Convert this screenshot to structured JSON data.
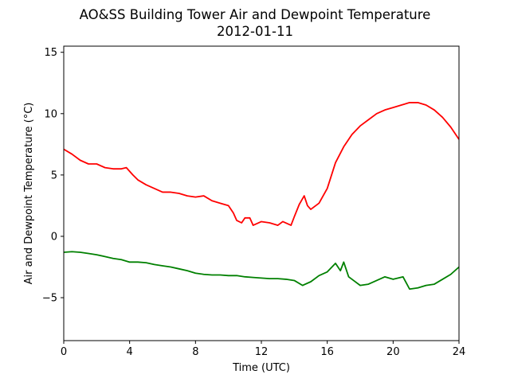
{
  "chart_data": {
    "type": "line",
    "title": "AO&SS Building Tower Air and Dewpoint Temperature",
    "subtitle": "2012-01-11",
    "xlabel": "Time (UTC)",
    "ylabel": "Air and Dewpoint Temperature (°C)",
    "xlim": [
      0,
      24
    ],
    "ylim": [
      -8.5,
      15.5
    ],
    "x_ticks": [
      0,
      4,
      8,
      12,
      16,
      20,
      24
    ],
    "y_ticks": [
      -5,
      0,
      5,
      10,
      15
    ],
    "grid": false,
    "series": [
      {
        "color": "#ff0000",
        "points": [
          [
            0,
            7.1
          ],
          [
            0.5,
            6.7
          ],
          [
            1,
            6.2
          ],
          [
            1.5,
            5.9
          ],
          [
            2,
            5.9
          ],
          [
            2.5,
            5.6
          ],
          [
            3,
            5.5
          ],
          [
            3.5,
            5.5
          ],
          [
            3.8,
            5.6
          ],
          [
            4.2,
            5.0
          ],
          [
            4.5,
            4.6
          ],
          [
            5,
            4.2
          ],
          [
            5.5,
            3.9
          ],
          [
            6,
            3.6
          ],
          [
            6.5,
            3.6
          ],
          [
            7,
            3.5
          ],
          [
            7.5,
            3.3
          ],
          [
            8,
            3.2
          ],
          [
            8.5,
            3.3
          ],
          [
            9,
            2.9
          ],
          [
            9.5,
            2.7
          ],
          [
            10,
            2.5
          ],
          [
            10.3,
            1.9
          ],
          [
            10.5,
            1.3
          ],
          [
            10.8,
            1.1
          ],
          [
            11,
            1.5
          ],
          [
            11.3,
            1.5
          ],
          [
            11.5,
            0.9
          ],
          [
            12,
            1.2
          ],
          [
            12.5,
            1.1
          ],
          [
            13,
            0.9
          ],
          [
            13.3,
            1.2
          ],
          [
            13.8,
            0.9
          ],
          [
            14,
            1.6
          ],
          [
            14.3,
            2.6
          ],
          [
            14.6,
            3.3
          ],
          [
            14.8,
            2.5
          ],
          [
            15,
            2.2
          ],
          [
            15.5,
            2.7
          ],
          [
            16,
            3.9
          ],
          [
            16.5,
            6.0
          ],
          [
            17,
            7.3
          ],
          [
            17.5,
            8.3
          ],
          [
            18,
            9.0
          ],
          [
            18.5,
            9.5
          ],
          [
            19,
            10.0
          ],
          [
            19.5,
            10.3
          ],
          [
            20,
            10.5
          ],
          [
            20.5,
            10.7
          ],
          [
            21,
            10.9
          ],
          [
            21.5,
            10.9
          ],
          [
            22,
            10.7
          ],
          [
            22.5,
            10.3
          ],
          [
            23,
            9.7
          ],
          [
            23.5,
            8.9
          ],
          [
            24,
            7.9
          ]
        ]
      },
      {
        "color": "#008000",
        "points": [
          [
            0,
            -1.3
          ],
          [
            0.5,
            -1.25
          ],
          [
            1,
            -1.3
          ],
          [
            1.5,
            -1.4
          ],
          [
            2,
            -1.5
          ],
          [
            2.5,
            -1.65
          ],
          [
            3,
            -1.8
          ],
          [
            3.5,
            -1.9
          ],
          [
            4,
            -2.1
          ],
          [
            4.5,
            -2.1
          ],
          [
            5,
            -2.15
          ],
          [
            5.5,
            -2.3
          ],
          [
            6,
            -2.4
          ],
          [
            6.5,
            -2.5
          ],
          [
            7,
            -2.65
          ],
          [
            7.5,
            -2.8
          ],
          [
            8,
            -3.0
          ],
          [
            8.5,
            -3.1
          ],
          [
            9,
            -3.15
          ],
          [
            9.5,
            -3.15
          ],
          [
            10,
            -3.2
          ],
          [
            10.5,
            -3.2
          ],
          [
            11,
            -3.3
          ],
          [
            11.5,
            -3.35
          ],
          [
            12,
            -3.4
          ],
          [
            12.5,
            -3.45
          ],
          [
            13,
            -3.45
          ],
          [
            13.5,
            -3.5
          ],
          [
            14,
            -3.6
          ],
          [
            14.5,
            -4.0
          ],
          [
            15,
            -3.7
          ],
          [
            15.5,
            -3.2
          ],
          [
            16,
            -2.9
          ],
          [
            16.5,
            -2.2
          ],
          [
            16.8,
            -2.8
          ],
          [
            17,
            -2.1
          ],
          [
            17.3,
            -3.3
          ],
          [
            17.6,
            -3.6
          ],
          [
            18,
            -4.0
          ],
          [
            18.5,
            -3.9
          ],
          [
            19,
            -3.6
          ],
          [
            19.5,
            -3.3
          ],
          [
            20,
            -3.5
          ],
          [
            20.3,
            -3.4
          ],
          [
            20.6,
            -3.3
          ],
          [
            21,
            -4.3
          ],
          [
            21.5,
            -4.2
          ],
          [
            22,
            -4.0
          ],
          [
            22.5,
            -3.9
          ],
          [
            23,
            -3.5
          ],
          [
            23.5,
            -3.1
          ],
          [
            24,
            -2.5
          ]
        ]
      }
    ]
  }
}
